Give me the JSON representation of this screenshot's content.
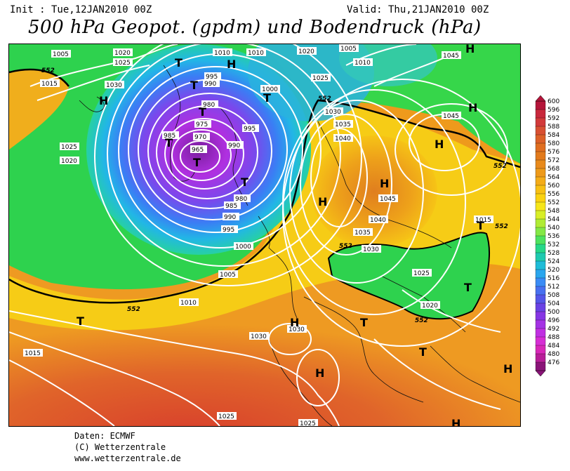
{
  "header": {
    "init": "Init : Tue,12JAN2010 00Z",
    "valid": "Valid: Thu,21JAN2010 00Z",
    "title": "500 hPa Geopot. (gpdm) und Bodendruck (hPa)"
  },
  "credits": {
    "line1": "Daten: ECMWF",
    "line2": "(C) Wetterzentrale",
    "line3": "www.wetterzentrale.de"
  },
  "colorbar": {
    "ticks": [
      "600",
      "596",
      "592",
      "588",
      "584",
      "580",
      "576",
      "572",
      "568",
      "564",
      "560",
      "556",
      "552",
      "548",
      "544",
      "540",
      "536",
      "532",
      "528",
      "524",
      "520",
      "516",
      "512",
      "508",
      "504",
      "500",
      "496",
      "492",
      "488",
      "484",
      "480",
      "476"
    ],
    "colors": [
      "#b4153a",
      "#c8283c",
      "#d23a3a",
      "#d85032",
      "#dc6028",
      "#e06e20",
      "#e27a1c",
      "#e88a1c",
      "#ee9a1a",
      "#f4ac18",
      "#f8c014",
      "#fad210",
      "#f6e61a",
      "#d8ee28",
      "#b0ec34",
      "#84e846",
      "#4ee25e",
      "#26d888",
      "#1ecab0",
      "#1ebcd8",
      "#2aa6ee",
      "#3a8cf6",
      "#4870f0",
      "#5456e8",
      "#6a42e4",
      "#8636e4",
      "#a432e4",
      "#c030e2",
      "#d62ed4",
      "#d828b8",
      "#b81e98",
      "#8a1478"
    ]
  },
  "map": {
    "isobar_labels": [
      "1005",
      "1020",
      "1025",
      "1030",
      "1015",
      "552",
      "1025",
      "1020",
      "1010",
      "1010",
      "1020",
      "1005",
      "1010",
      "1025",
      "1045",
      "995",
      "990",
      "980",
      "975",
      "970",
      "965",
      "985",
      "1000",
      "995",
      "990",
      "980",
      "985",
      "990",
      "995",
      "1000",
      "1005",
      "1010",
      "1030",
      "1035",
      "1040",
      "1045",
      "1045",
      "1040",
      "1035",
      "1030",
      "1025",
      "1020",
      "1015",
      "1030",
      "1030",
      "1015",
      "1025",
      "1025",
      "552",
      "552",
      "552",
      "552",
      "552",
      "552"
    ],
    "highs": [
      "H",
      "H",
      "H",
      "H",
      "H",
      "H",
      "H",
      "H",
      "H",
      "H",
      "H"
    ],
    "lows": [
      "T",
      "T",
      "T",
      "T",
      "T",
      "T",
      "T",
      "T",
      "T",
      "T",
      "T",
      "T"
    ]
  }
}
